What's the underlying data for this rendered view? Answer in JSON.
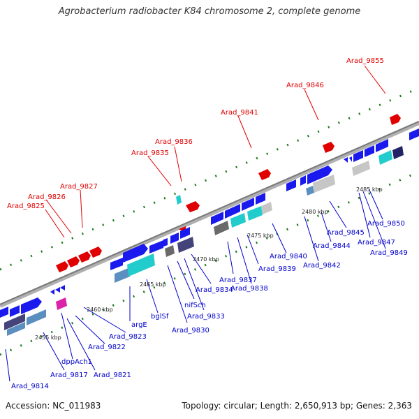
{
  "title": "Agrobacterium radiobacter K84 chromosome 2, complete genome",
  "footer": {
    "accession": "Accession: NC_011983",
    "summary": "Topology: circular; Length: 2,650,913 bp; Genes: 2,363"
  },
  "colors": {
    "backbone": "#888888",
    "forward_gene": "#e00000",
    "reverse_gene": "#1a1aee",
    "cyan_gene": "#22dddd",
    "slate_gene": "#5a8fbf",
    "purple_gene": "#44447a",
    "grey_gene": "#6a6a6a",
    "light_grey_gene": "#c6c6c6",
    "magenta_gene": "#dd22aa",
    "tick": "#1a7a1a",
    "red_label": "#e00000",
    "blue_label": "#0000cc"
  },
  "kbp_ticks": [
    "2455 kbp",
    "2460 kbp",
    "2465 kbp",
    "2470 kbp",
    "2475 kbp",
    "2480 kbp",
    "2485 kbp"
  ],
  "upper_labels": [
    "Arad_9825",
    "Arad_9826",
    "Arad_9827",
    "Arad_9835",
    "Arad_9836",
    "Arad_9841",
    "Arad_9846",
    "Arad_9855"
  ],
  "lower_labels": [
    "Arad_9814",
    "Arad_9817",
    "dppAch1",
    "Arad_9821",
    "Arad_9822",
    "Arad_9823",
    "argE",
    "bglSf",
    "Arad_9830",
    "nifSch",
    "Arad_9833",
    "Arad_9834",
    "Arad_9837",
    "Arad_9838",
    "Arad_9839",
    "Arad_9840",
    "Arad_9842",
    "Arad_9844",
    "Arad_9845",
    "Arad_9847",
    "Arad_9849",
    "Arad_9850"
  ]
}
